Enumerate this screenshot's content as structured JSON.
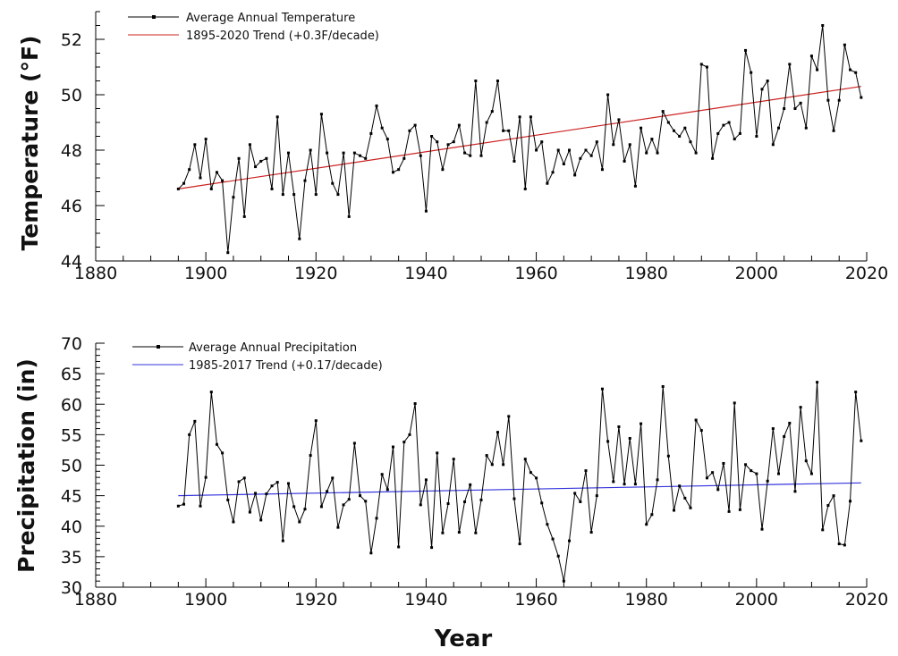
{
  "charts": {
    "temperature": {
      "ylabel": "Temperature (°F)",
      "legend": {
        "series_label": "Average Annual Temperature",
        "trend_label": "1895-2020 Trend (+0.3F/decade)"
      },
      "colors": {
        "series": "#000000",
        "trend": "#cc2222"
      }
    },
    "precipitation": {
      "ylabel": "Precipitation (in)",
      "xlabel": "Year",
      "legend": {
        "series_label": "Average Annual Precipitation",
        "trend_label": "1985-2017 Trend (+0.17/decade)"
      },
      "colors": {
        "series": "#000000",
        "trend": "#3333dd"
      }
    }
  },
  "chart_data": [
    {
      "type": "line",
      "xlabel": "",
      "ylabel": "Temperature (°F)",
      "xlim": [
        1880,
        2020
      ],
      "ylim": [
        44,
        53
      ],
      "xticks": [
        1880,
        1900,
        1920,
        1940,
        1960,
        1980,
        2000,
        2020
      ],
      "yticks": [
        44,
        46,
        48,
        50,
        52
      ],
      "grid": false,
      "legend_position": "top-left",
      "x": [
        1895,
        1896,
        1897,
        1898,
        1899,
        1900,
        1901,
        1902,
        1903,
        1904,
        1905,
        1906,
        1907,
        1908,
        1909,
        1910,
        1911,
        1912,
        1913,
        1914,
        1915,
        1916,
        1917,
        1918,
        1919,
        1920,
        1921,
        1922,
        1923,
        1924,
        1925,
        1926,
        1927,
        1928,
        1929,
        1930,
        1931,
        1932,
        1933,
        1934,
        1935,
        1936,
        1937,
        1938,
        1939,
        1940,
        1941,
        1942,
        1943,
        1944,
        1945,
        1946,
        1947,
        1948,
        1949,
        1950,
        1951,
        1952,
        1953,
        1954,
        1955,
        1956,
        1957,
        1958,
        1959,
        1960,
        1961,
        1962,
        1963,
        1964,
        1965,
        1966,
        1967,
        1968,
        1969,
        1970,
        1971,
        1972,
        1973,
        1974,
        1975,
        1976,
        1977,
        1978,
        1979,
        1980,
        1981,
        1982,
        1983,
        1984,
        1985,
        1986,
        1987,
        1988,
        1989,
        1990,
        1991,
        1992,
        1993,
        1994,
        1995,
        1996,
        1997,
        1998,
        1999,
        2000,
        2001,
        2002,
        2003,
        2004,
        2005,
        2006,
        2007,
        2008,
        2009,
        2010,
        2011,
        2012,
        2013,
        2014,
        2015,
        2016,
        2017,
        2018,
        2019
      ],
      "series": [
        {
          "name": "Average Annual Temperature",
          "values": [
            46.6,
            46.8,
            47.3,
            48.2,
            47.0,
            48.4,
            46.6,
            47.2,
            46.9,
            44.3,
            46.3,
            47.7,
            45.6,
            48.2,
            47.4,
            47.6,
            47.7,
            46.6,
            49.2,
            46.4,
            47.9,
            46.4,
            44.8,
            46.9,
            48.0,
            46.4,
            49.3,
            47.9,
            46.8,
            46.4,
            47.9,
            45.6,
            47.9,
            47.8,
            47.7,
            48.6,
            49.6,
            48.8,
            48.4,
            47.2,
            47.3,
            47.7,
            48.7,
            48.9,
            47.8,
            45.8,
            48.5,
            48.3,
            47.3,
            48.2,
            48.3,
            48.9,
            47.9,
            47.8,
            50.5,
            47.8,
            49.0,
            49.4,
            50.5,
            48.7,
            48.7,
            47.6,
            49.2,
            46.6,
            49.2,
            48.0,
            48.3,
            46.8,
            47.2,
            48.0,
            47.5,
            48.0,
            47.1,
            47.7,
            48.0,
            47.8,
            48.3,
            47.3,
            50.0,
            48.2,
            49.1,
            47.6,
            48.2,
            46.7,
            48.8,
            47.9,
            48.4,
            47.9,
            49.4,
            49.0,
            48.7,
            48.5,
            48.8,
            48.3,
            47.9,
            51.1,
            51.0,
            47.7,
            48.6,
            48.9,
            49.0,
            48.4,
            48.6,
            51.6,
            50.8,
            48.5,
            50.2,
            50.5,
            48.2,
            48.8,
            49.5,
            51.1,
            49.5,
            49.7,
            48.8,
            51.4,
            50.9,
            52.5,
            49.8,
            48.7,
            49.8,
            51.8,
            50.9,
            50.8,
            49.9
          ]
        },
        {
          "name": "1895-2020 Trend (+0.3F/decade)",
          "x": [
            1895,
            2019
          ],
          "values": [
            46.6,
            50.3
          ]
        }
      ]
    },
    {
      "type": "line",
      "xlabel": "Year",
      "ylabel": "Precipitation (in)",
      "xlim": [
        1880,
        2020
      ],
      "ylim": [
        30,
        70
      ],
      "xticks": [
        1880,
        1900,
        1920,
        1940,
        1960,
        1980,
        2000,
        2020
      ],
      "yticks": [
        30,
        35,
        40,
        45,
        50,
        55,
        60,
        65,
        70
      ],
      "grid": false,
      "legend_position": "top-left",
      "x": [
        1895,
        1896,
        1897,
        1898,
        1899,
        1900,
        1901,
        1902,
        1903,
        1904,
        1905,
        1906,
        1907,
        1908,
        1909,
        1910,
        1911,
        1912,
        1913,
        1914,
        1915,
        1916,
        1917,
        1918,
        1919,
        1920,
        1921,
        1922,
        1923,
        1924,
        1925,
        1926,
        1927,
        1928,
        1929,
        1930,
        1931,
        1932,
        1933,
        1934,
        1935,
        1936,
        1937,
        1938,
        1939,
        1940,
        1941,
        1942,
        1943,
        1944,
        1945,
        1946,
        1947,
        1948,
        1949,
        1950,
        1951,
        1952,
        1953,
        1954,
        1955,
        1956,
        1957,
        1958,
        1959,
        1960,
        1961,
        1962,
        1963,
        1964,
        1965,
        1966,
        1967,
        1968,
        1969,
        1970,
        1971,
        1972,
        1973,
        1974,
        1975,
        1976,
        1977,
        1978,
        1979,
        1980,
        1981,
        1982,
        1983,
        1984,
        1985,
        1986,
        1987,
        1988,
        1989,
        1990,
        1991,
        1992,
        1993,
        1994,
        1995,
        1996,
        1997,
        1998,
        1999,
        2000,
        2001,
        2002,
        2003,
        2004,
        2005,
        2006,
        2007,
        2008,
        2009,
        2010,
        2011,
        2012,
        2013,
        2014,
        2015,
        2016,
        2017,
        2018,
        2019
      ],
      "series": [
        {
          "name": "Average Annual Precipitation",
          "values": [
            43.3,
            43.6,
            55.0,
            57.2,
            43.3,
            48.0,
            62.0,
            53.4,
            52.0,
            44.3,
            40.7,
            47.3,
            47.9,
            42.3,
            45.4,
            41.0,
            45.3,
            46.6,
            47.2,
            37.6,
            47.0,
            43.2,
            40.7,
            42.8,
            51.6,
            57.3,
            43.2,
            45.7,
            47.9,
            39.8,
            43.5,
            44.4,
            53.6,
            45.0,
            44.1,
            35.6,
            41.3,
            48.5,
            46.0,
            53.0,
            36.6,
            53.8,
            55.0,
            60.1,
            43.5,
            47.6,
            36.5,
            52.0,
            38.9,
            43.7,
            51.0,
            39.0,
            44.0,
            46.8,
            38.9,
            44.3,
            51.6,
            50.1,
            55.4,
            50.1,
            58.0,
            44.5,
            37.1,
            51.0,
            48.8,
            47.9,
            43.8,
            40.3,
            37.9,
            35.1,
            31.0,
            37.6,
            45.4,
            44.0,
            49.1,
            39.0,
            45.0,
            62.5,
            53.9,
            47.3,
            56.3,
            46.9,
            54.4,
            46.9,
            56.8,
            40.3,
            41.9,
            47.6,
            62.9,
            51.5,
            42.6,
            46.6,
            44.6,
            43.0,
            57.4,
            55.7,
            47.9,
            48.8,
            46.0,
            50.3,
            42.4,
            60.2,
            42.7,
            50.1,
            49.1,
            48.6,
            39.5,
            47.4,
            56.0,
            48.6,
            54.7,
            56.9,
            45.7,
            59.5,
            50.7,
            48.6,
            63.6,
            39.4,
            43.4,
            45.0,
            37.1,
            36.9,
            44.1,
            62.0,
            54.0
          ]
        },
        {
          "name": "1985-2017 Trend (+0.17/decade)",
          "x": [
            1895,
            2019
          ],
          "values": [
            45.0,
            47.1
          ]
        }
      ]
    }
  ]
}
